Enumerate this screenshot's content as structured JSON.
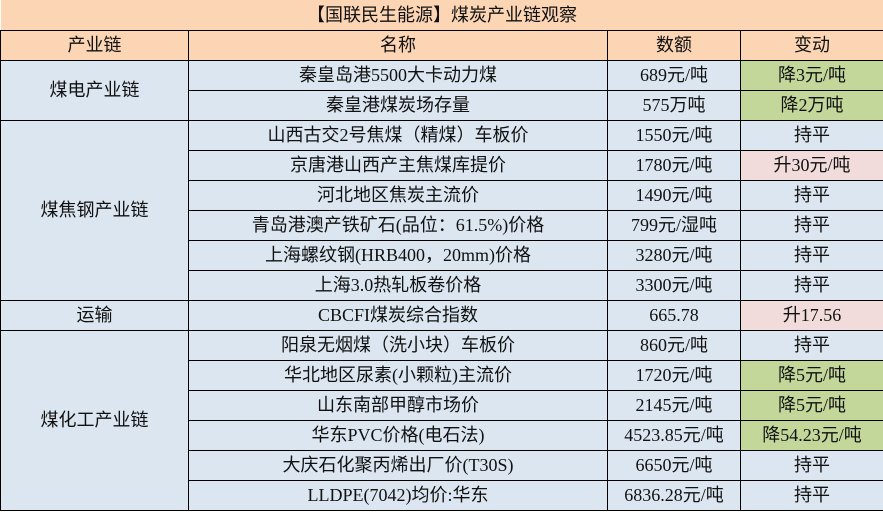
{
  "title": "【国联民生能源】煤炭产业链观察",
  "headers": [
    "产业链",
    "名称",
    "数额",
    "变动"
  ],
  "colors": {
    "header_bg": "#FCD5B4",
    "cell_bg": "#DCE6F1",
    "decrease_bg": "#C4D79B",
    "increase_bg": "#F2DCDB"
  },
  "groups": [
    {
      "name": "煤电产业链",
      "rows": [
        {
          "name": "秦皇岛港5500大卡动力煤",
          "value": "689元/吨",
          "change": "降3元/吨",
          "trend": "down"
        },
        {
          "name": "秦皇港煤炭场存量",
          "value": "575万吨",
          "change": "降2万吨",
          "trend": "down"
        }
      ]
    },
    {
      "name": "煤焦钢产业链",
      "rows": [
        {
          "name": "山西古交2号焦煤（精煤）车板价",
          "value": "1550元/吨",
          "change": "持平",
          "trend": "flat"
        },
        {
          "name": "京唐港山西产主焦煤库提价",
          "value": "1780元/吨",
          "change": "升30元/吨",
          "trend": "up"
        },
        {
          "name": "河北地区焦炭主流价",
          "value": "1490元/吨",
          "change": "持平",
          "trend": "flat"
        },
        {
          "name": "青岛港澳产铁矿石(品位：61.5%)价格",
          "value": "799元/湿吨",
          "change": "持平",
          "trend": "flat"
        },
        {
          "name": "上海螺纹钢(HRB400，20mm)价格",
          "value": "3280元/吨",
          "change": "持平",
          "trend": "flat"
        },
        {
          "name": "上海3.0热轧板卷价格",
          "value": "3300元/吨",
          "change": "持平",
          "trend": "flat"
        }
      ]
    },
    {
      "name": "运输",
      "rows": [
        {
          "name": "CBCFI煤炭综合指数",
          "value": "665.78",
          "change": "升17.56",
          "trend": "up"
        }
      ]
    },
    {
      "name": "煤化工产业链",
      "rows": [
        {
          "name": "阳泉无烟煤（洗小块）车板价",
          "value": "860元/吨",
          "change": "持平",
          "trend": "flat"
        },
        {
          "name": "华北地区尿素(小颗粒)主流价",
          "value": "1720元/吨",
          "change": "降5元/吨",
          "trend": "down"
        },
        {
          "name": "山东南部甲醇市场价",
          "value": "2145元/吨",
          "change": "降5元/吨",
          "trend": "down"
        },
        {
          "name": "华东PVC价格(电石法)",
          "value": "4523.85元/吨",
          "change": "降54.23元/吨",
          "trend": "down"
        },
        {
          "name": "大庆石化聚丙烯出厂价(T30S)",
          "value": "6650元/吨",
          "change": "持平",
          "trend": "flat"
        },
        {
          "name": "LLDPE(7042)均价:华东",
          "value": "6836.28元/吨",
          "change": "持平",
          "trend": "flat"
        }
      ]
    }
  ]
}
